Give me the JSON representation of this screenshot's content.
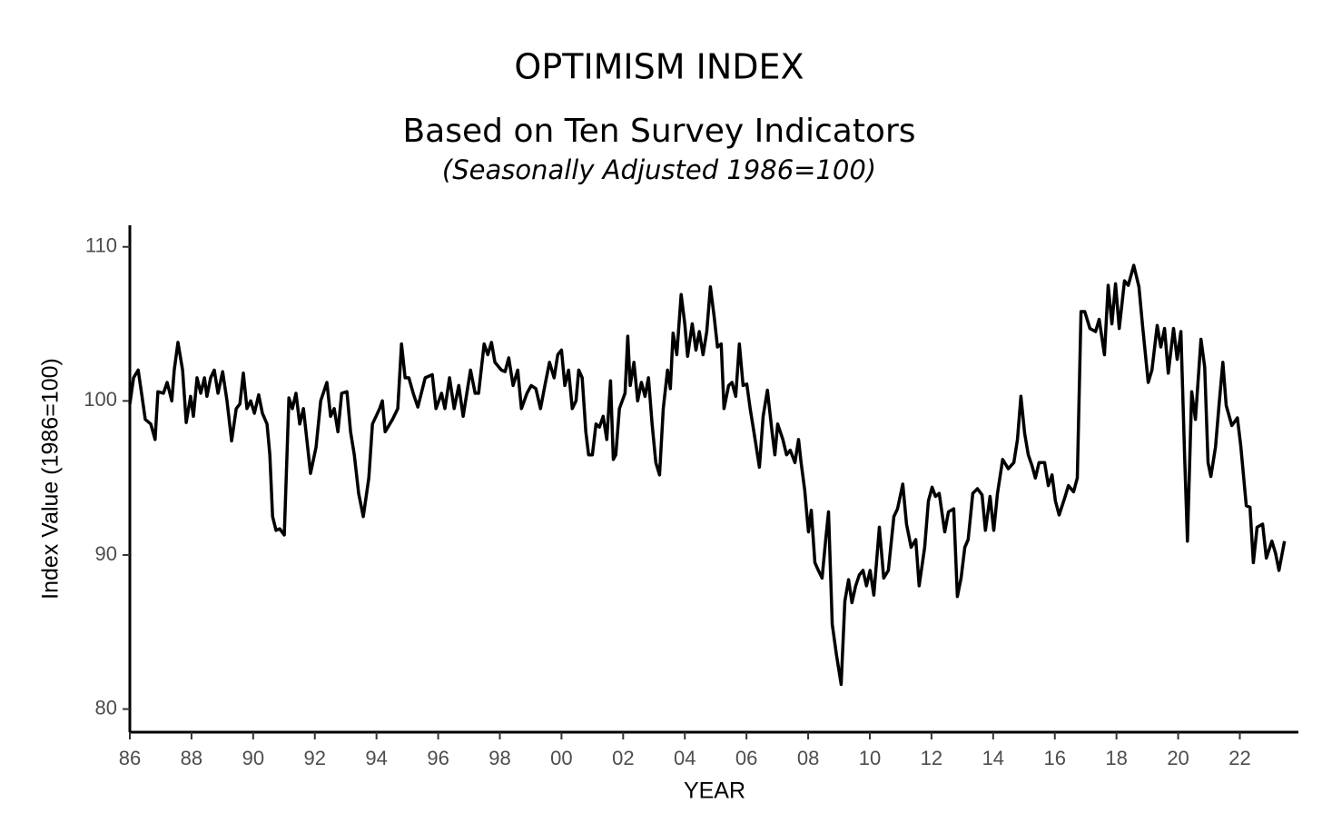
{
  "chart_data": {
    "type": "line",
    "title": "OPTIMISM INDEX",
    "subtitle": "Based on Ten Survey Indicators",
    "subtitle2": "(Seasonally Adjusted 1986=100)",
    "x_label": "YEAR",
    "y_label": "Index Value (1986=100)",
    "color": "#000000",
    "grid": false,
    "xlim": [
      1986,
      2023.9
    ],
    "ylim": [
      78.5,
      111.4
    ],
    "yticks": [
      80,
      90,
      100,
      110
    ],
    "xticks": [
      {
        "value": 1986,
        "label": "86"
      },
      {
        "value": 1988,
        "label": "88"
      },
      {
        "value": 1990,
        "label": "90"
      },
      {
        "value": 1992,
        "label": "92"
      },
      {
        "value": 1994,
        "label": "94"
      },
      {
        "value": 1996,
        "label": "96"
      },
      {
        "value": 1998,
        "label": "98"
      },
      {
        "value": 2000,
        "label": "00"
      },
      {
        "value": 2002,
        "label": "02"
      },
      {
        "value": 2004,
        "label": "04"
      },
      {
        "value": 2006,
        "label": "06"
      },
      {
        "value": 2008,
        "label": "08"
      },
      {
        "value": 2010,
        "label": "10"
      },
      {
        "value": 2012,
        "label": "12"
      },
      {
        "value": 2014,
        "label": "14"
      },
      {
        "value": 2016,
        "label": "16"
      },
      {
        "value": 2018,
        "label": "18"
      },
      {
        "value": 2020,
        "label": "20"
      },
      {
        "value": 2022,
        "label": "22"
      }
    ],
    "x": [
      1986.0,
      1986.12,
      1986.27,
      1986.38,
      1986.5,
      1986.68,
      1986.82,
      1986.91,
      1987.09,
      1987.21,
      1987.36,
      1987.44,
      1987.56,
      1987.71,
      1987.83,
      1987.97,
      1988.06,
      1988.18,
      1988.3,
      1988.42,
      1988.5,
      1988.62,
      1988.74,
      1988.86,
      1989.01,
      1989.15,
      1989.3,
      1989.45,
      1989.57,
      1989.68,
      1989.8,
      1989.92,
      1990.04,
      1990.18,
      1990.3,
      1990.45,
      1990.54,
      1990.63,
      1990.74,
      1990.86,
      1991.01,
      1991.16,
      1991.27,
      1991.39,
      1991.51,
      1991.63,
      1991.86,
      1992.04,
      1992.19,
      1992.39,
      1992.51,
      1992.63,
      1992.75,
      1992.87,
      1993.04,
      1993.16,
      1993.28,
      1993.42,
      1993.57,
      1993.75,
      1993.87,
      1994.1,
      1994.19,
      1994.28,
      1994.52,
      1994.69,
      1994.81,
      1994.93,
      1995.05,
      1995.19,
      1995.34,
      1995.58,
      1995.81,
      1995.93,
      1996.11,
      1996.22,
      1996.37,
      1996.52,
      1996.67,
      1996.81,
      1997.05,
      1997.2,
      1997.31,
      1997.49,
      1997.61,
      1997.73,
      1997.84,
      1998.05,
      1998.17,
      1998.29,
      1998.43,
      1998.58,
      1998.7,
      1998.88,
      1999.02,
      1999.17,
      1999.32,
      1999.46,
      1999.61,
      1999.76,
      1999.88,
      2000.0,
      2000.11,
      2000.23,
      2000.35,
      2000.47,
      2000.56,
      2000.67,
      2000.79,
      2000.88,
      2001.0,
      2001.12,
      2001.23,
      2001.35,
      2001.47,
      2001.59,
      2001.68,
      2001.76,
      2001.88,
      2002.06,
      2002.15,
      2002.23,
      2002.35,
      2002.47,
      2002.59,
      2002.71,
      2002.82,
      2002.94,
      2003.06,
      2003.18,
      2003.3,
      2003.44,
      2003.53,
      2003.62,
      2003.74,
      2003.88,
      2004.0,
      2004.09,
      2004.24,
      2004.36,
      2004.47,
      2004.59,
      2004.71,
      2004.83,
      2004.95,
      2005.06,
      2005.18,
      2005.27,
      2005.42,
      2005.53,
      2005.65,
      2005.77,
      2005.89,
      2006.01,
      2006.12,
      2006.24,
      2006.42,
      2006.54,
      2006.68,
      2006.83,
      2006.92,
      2007.01,
      2007.18,
      2007.3,
      2007.42,
      2007.57,
      2007.69,
      2007.77,
      2007.89,
      2008.01,
      2008.1,
      2008.22,
      2008.33,
      2008.45,
      2008.57,
      2008.66,
      2008.78,
      2008.92,
      2009.07,
      2009.19,
      2009.31,
      2009.42,
      2009.54,
      2009.66,
      2009.78,
      2009.89,
      2010.01,
      2010.13,
      2010.31,
      2010.45,
      2010.6,
      2010.78,
      2010.9,
      2011.07,
      2011.19,
      2011.34,
      2011.49,
      2011.6,
      2011.78,
      2011.9,
      2012.02,
      2012.13,
      2012.25,
      2012.43,
      2012.55,
      2012.72,
      2012.84,
      2012.96,
      2013.08,
      2013.19,
      2013.34,
      2013.49,
      2013.64,
      2013.75,
      2013.9,
      2014.02,
      2014.14,
      2014.31,
      2014.49,
      2014.67,
      2014.79,
      2014.9,
      2015.02,
      2015.14,
      2015.26,
      2015.37,
      2015.49,
      2015.67,
      2015.79,
      2015.91,
      2016.02,
      2016.14,
      2016.32,
      2016.44,
      2016.61,
      2016.73,
      2016.85,
      2016.97,
      2017.14,
      2017.32,
      2017.44,
      2017.61,
      2017.73,
      2017.85,
      2017.97,
      2018.09,
      2018.26,
      2018.38,
      2018.56,
      2018.73,
      2018.85,
      2019.03,
      2019.15,
      2019.32,
      2019.44,
      2019.56,
      2019.68,
      2019.85,
      2019.97,
      2020.09,
      2020.21,
      2020.3,
      2020.44,
      2020.56,
      2020.74,
      2020.86,
      2020.97,
      2021.06,
      2021.21,
      2021.33,
      2021.45,
      2021.56,
      2021.74,
      2021.92,
      2022.03,
      2022.21,
      2022.33,
      2022.44,
      2022.56,
      2022.74,
      2022.86,
      2023.04,
      2023.16,
      2023.27,
      2023.45
    ],
    "values": [
      99.8,
      101.5,
      102,
      100.5,
      98.8,
      98.5,
      97.5,
      100.6,
      100.5,
      101.2,
      100,
      102,
      103.8,
      102,
      98.6,
      100.3,
      99,
      101.5,
      100.5,
      101.5,
      100.3,
      101.5,
      102,
      100.5,
      101.9,
      100,
      97.4,
      99.5,
      99.8,
      101.8,
      99.5,
      100,
      99.2,
      100.4,
      99.2,
      98.5,
      96.5,
      92.5,
      91.6,
      91.7,
      91.3,
      100.2,
      99.5,
      100.5,
      98.5,
      99.5,
      95.3,
      97,
      100,
      101.2,
      99,
      99.5,
      98,
      100.5,
      100.6,
      98,
      96.5,
      94,
      92.5,
      95,
      98.5,
      99.5,
      100,
      98,
      98.8,
      99.5,
      103.7,
      101.5,
      101.5,
      100.5,
      99.6,
      101.5,
      101.7,
      99.5,
      100.5,
      99.5,
      101.5,
      99.5,
      101,
      99,
      102,
      100.5,
      100.5,
      103.7,
      103,
      103.8,
      102.5,
      102,
      101.9,
      102.8,
      101,
      102,
      99.5,
      100.5,
      101,
      100.8,
      99.5,
      101,
      102.5,
      101.5,
      103,
      103.3,
      101,
      102,
      99.5,
      100,
      102,
      101.5,
      98,
      96.5,
      96.5,
      98.5,
      98.3,
      99,
      97.5,
      101.3,
      96.2,
      96.5,
      99.5,
      100.5,
      104.2,
      101,
      102.5,
      100,
      101.2,
      100.3,
      101.5,
      98.5,
      96,
      95.2,
      99.5,
      102,
      100.8,
      104.4,
      103,
      106.9,
      105,
      102.9,
      105,
      103.3,
      104.5,
      103,
      104.5,
      107.4,
      105.5,
      103.5,
      103.7,
      99.5,
      101,
      101.2,
      100.3,
      103.7,
      101,
      101.1,
      99.5,
      98,
      95.7,
      99,
      100.7,
      98,
      96.5,
      98.5,
      97.5,
      96.5,
      96.8,
      96,
      97.5,
      96,
      94.2,
      91.5,
      92.9,
      89.5,
      89,
      88.5,
      91,
      92.8,
      85.5,
      83.5,
      81.6,
      87,
      88.4,
      86.9,
      88,
      88.7,
      89,
      88,
      89,
      87.4,
      91.8,
      88.5,
      89,
      92.5,
      93,
      94.6,
      92,
      90.5,
      91,
      88,
      90.5,
      93.5,
      94.4,
      93.8,
      94,
      91.5,
      92.8,
      93,
      87.3,
      88.5,
      90.5,
      91,
      94,
      94.3,
      93.9,
      91.6,
      93.8,
      91.6,
      94,
      96.2,
      95.6,
      96,
      97.5,
      100.3,
      97.9,
      96.5,
      95.8,
      95,
      96,
      96,
      94.5,
      95.2,
      93.5,
      92.6,
      93.7,
      94.5,
      94.1,
      95,
      105.8,
      105.8,
      104.7,
      104.5,
      105.3,
      103,
      107.5,
      105,
      107.6,
      104.7,
      107.8,
      107.5,
      108.8,
      107.4,
      104.8,
      101.2,
      102,
      104.9,
      103.5,
      104.7,
      101.8,
      104.7,
      102.7,
      104.5,
      96.4,
      90.9,
      100.6,
      98.8,
      104,
      102.2,
      96,
      95.1,
      97,
      99.8,
      102.5,
      99.7,
      98.4,
      98.9,
      97.1,
      93.2,
      93.1,
      89.5,
      91.8,
      92,
      89.8,
      90.9,
      90.1,
      89,
      90.9
    ]
  }
}
